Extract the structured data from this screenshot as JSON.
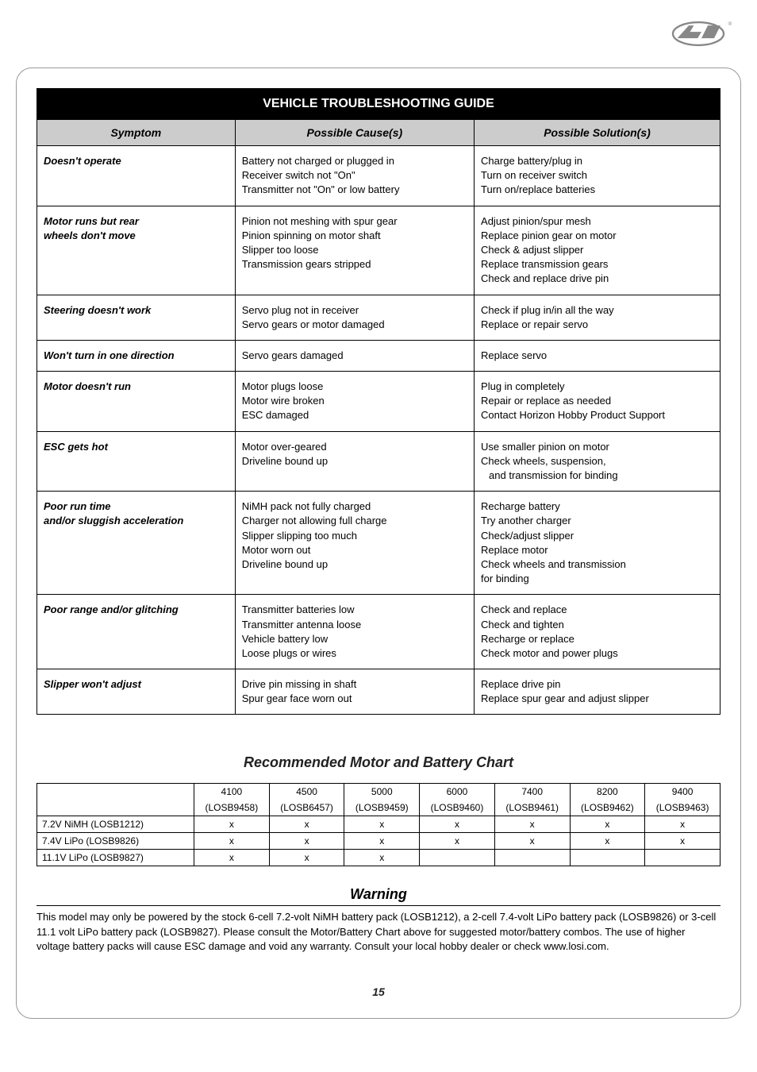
{
  "logo_registered": "®",
  "main_table": {
    "title": "VEHICLE TROUBLESHOOTING GUIDE",
    "headers": {
      "symptom": "Symptom",
      "cause": "Possible Cause(s)",
      "solution": "Possible Solution(s)"
    },
    "rows": [
      {
        "symptom": [
          "Doesn't operate"
        ],
        "cause": [
          "Battery not charged or plugged in",
          "Receiver switch not \"On\"",
          "Transmitter not \"On\" or low battery"
        ],
        "solution": [
          "Charge battery/plug in",
          "Turn on receiver switch",
          "Turn on/replace batteries"
        ]
      },
      {
        "symptom": [
          "Motor runs but rear",
          "wheels don't move"
        ],
        "cause": [
          "Pinion not meshing with spur gear",
          "Pinion spinning on motor shaft",
          "Slipper too loose",
          "Transmission gears stripped"
        ],
        "solution": [
          "Adjust pinion/spur mesh",
          "Replace pinion gear on motor",
          "Check & adjust slipper",
          "Replace transmission gears",
          "Check and replace drive pin"
        ]
      },
      {
        "symptom": [
          "Steering doesn't work"
        ],
        "cause": [
          "Servo plug not in receiver",
          "Servo gears or motor damaged"
        ],
        "solution": [
          "Check if plug in/in all the way",
          "Replace or repair servo"
        ]
      },
      {
        "symptom": [
          "Won't turn in one direction"
        ],
        "cause": [
          "Servo gears damaged"
        ],
        "solution": [
          "Replace servo"
        ]
      },
      {
        "symptom": [
          "Motor doesn't run"
        ],
        "cause": [
          "Motor plugs loose",
          "Motor wire broken",
          "ESC damaged"
        ],
        "solution": [
          "Plug in completely",
          "Repair or replace as needed",
          "Contact Horizon Hobby Product Support"
        ]
      },
      {
        "symptom": [
          "ESC gets hot"
        ],
        "cause": [
          "Motor over-geared",
          "Driveline bound up"
        ],
        "solution": [
          "Use smaller pinion on motor",
          "Check wheels, suspension,",
          "  and transmission for binding"
        ]
      },
      {
        "symptom": [
          "Poor run time",
          "and/or sluggish acceleration"
        ],
        "cause": [
          "NiMH pack not fully charged",
          "Charger not allowing full charge",
          "Slipper slipping too much",
          "Motor worn out",
          "Driveline bound up"
        ],
        "solution": [
          "Recharge battery",
          "Try another charger",
          "Check/adjust slipper",
          "Replace motor",
          "Check wheels and transmission",
          "for binding"
        ]
      },
      {
        "symptom": [
          "Poor range and/or glitching"
        ],
        "cause": [
          "Transmitter batteries low",
          "Transmitter antenna loose",
          "Vehicle battery low",
          "Loose plugs or wires"
        ],
        "solution": [
          "Check and replace",
          "Check and tighten",
          "Recharge or replace",
          "Check motor and power plugs"
        ]
      },
      {
        "symptom": [
          "Slipper won't adjust"
        ],
        "cause": [
          "Drive pin missing in shaft",
          "Spur gear face worn out"
        ],
        "solution": [
          "Replace drive pin",
          "Replace spur gear and adjust slipper"
        ]
      }
    ]
  },
  "chart": {
    "heading": "Recommended Motor and Battery Chart",
    "col_numbers": [
      "4100",
      "4500",
      "5000",
      "6000",
      "7400",
      "8200",
      "9400"
    ],
    "col_codes": [
      "(LOSB9458)",
      "(LOSB6457)",
      "(LOSB9459)",
      "(LOSB9460)",
      "(LOSB9461)",
      "(LOSB9462)",
      "(LOSB9463)"
    ],
    "rows": [
      {
        "label": "7.2V NiMH (LOSB1212)",
        "cells": [
          "x",
          "x",
          "x",
          "x",
          "x",
          "x",
          "x"
        ]
      },
      {
        "label": "7.4V LiPo (LOSB9826)",
        "cells": [
          "x",
          "x",
          "x",
          "x",
          "x",
          "x",
          "x"
        ]
      },
      {
        "label": "11.1V LiPo (LOSB9827)",
        "cells": [
          "x",
          "x",
          "x",
          "",
          "",
          "",
          ""
        ]
      }
    ]
  },
  "warning": {
    "heading": "Warning",
    "text": "This model may only be powered by the stock 6-cell 7.2-volt NiMH battery pack (LOSB1212), a 2-cell 7.4-volt LiPo battery pack (LOSB9826) or 3-cell 11.1 volt LiPo battery pack (LOSB9827). Please consult the Motor/Battery Chart above for suggested motor/battery combos. The use of higher voltage battery packs will cause ESC damage and void any warranty. Consult your local hobby dealer or check www.losi.com."
  },
  "page_number": "15",
  "colors": {
    "header_bg": "#000000",
    "header_fg": "#ffffff",
    "subheader_bg": "#cccccc",
    "border": "#000000"
  }
}
